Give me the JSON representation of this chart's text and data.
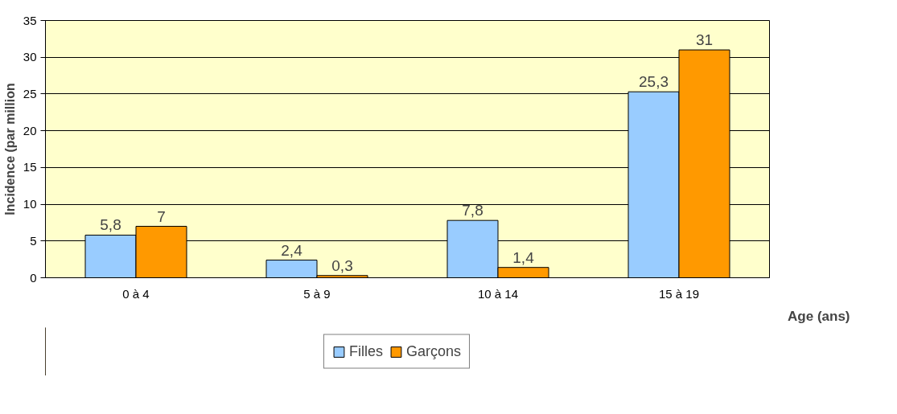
{
  "chart_data": {
    "type": "bar",
    "categories": [
      "0 à 4",
      "5 à 9",
      "10 à 14",
      "15 à 19"
    ],
    "series": [
      {
        "name": "Filles",
        "color": "#99ccff",
        "values": [
          5.8,
          2.4,
          7.8,
          25.3
        ],
        "value_labels": [
          "5,8",
          "2,4",
          "7,8",
          "25,3"
        ]
      },
      {
        "name": "Garçons",
        "color": "#ff9900",
        "values": [
          7,
          0.3,
          1.4,
          31
        ],
        "value_labels": [
          "7",
          "0,3",
          "1,4",
          "31"
        ]
      }
    ],
    "xlabel": "Age (ans)",
    "ylabel": "Incidence (par million",
    "ylim": [
      0,
      35
    ],
    "yticks": [
      0,
      5,
      10,
      15,
      20,
      25,
      30,
      35
    ],
    "grid": "y",
    "legend": "bottom"
  }
}
